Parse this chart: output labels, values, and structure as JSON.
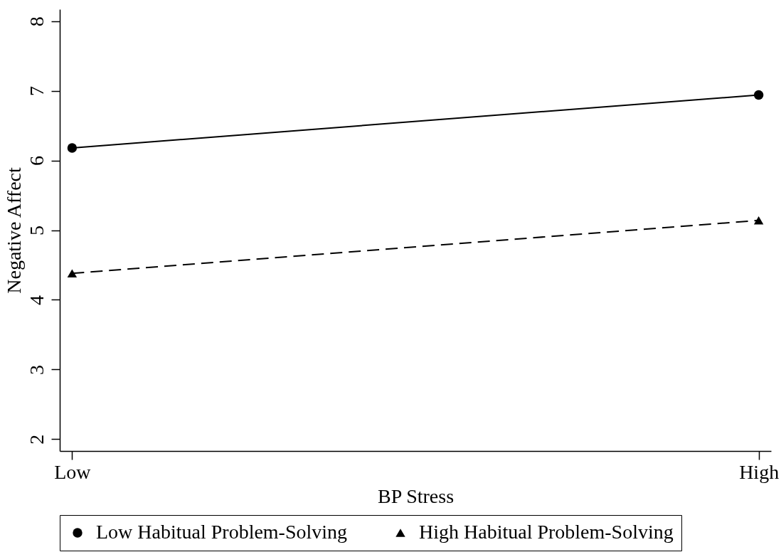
{
  "chart_data": {
    "type": "line",
    "xlabel": "BP Stress",
    "ylabel": "Negative Affect",
    "categories": [
      "Low",
      "High"
    ],
    "ylim": [
      1.83,
      8.17
    ],
    "yticks": [
      2,
      3,
      4,
      5,
      6,
      7,
      8
    ],
    "legend": "bottom",
    "series": [
      {
        "name": "Low Habitual Problem-Solving",
        "color": "#000000",
        "values": [
          6.18,
          6.94
        ],
        "marker": "circle",
        "line_style": "solid"
      },
      {
        "name": "High Habitual Problem-Solving",
        "color": "#000000",
        "values": [
          4.38,
          5.14
        ],
        "marker": "triangle",
        "line_style": "dashed"
      }
    ]
  }
}
